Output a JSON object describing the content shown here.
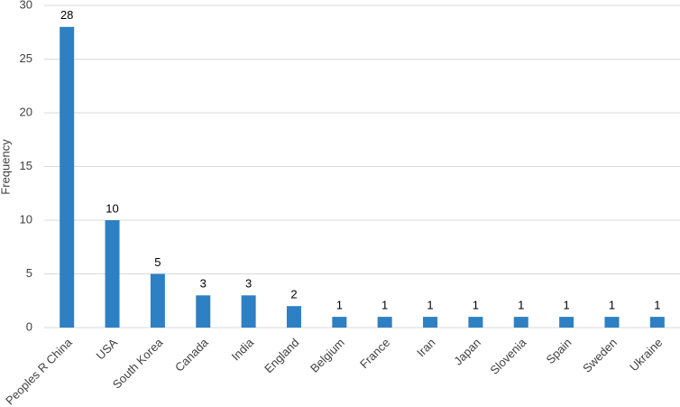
{
  "chart_data": {
    "type": "bar",
    "y_label": "Frequency",
    "categories": [
      "Peoples R China",
      "USA",
      "South Korea",
      "Canada",
      "India",
      "England",
      "Belgium",
      "France",
      "Iran",
      "Japan",
      "Slovenia",
      "Spain",
      "Sweden",
      "Ukraine"
    ],
    "values": [
      28,
      10,
      5,
      3,
      3,
      2,
      1,
      1,
      1,
      1,
      1,
      1,
      1,
      1
    ],
    "color": "#2e80c4",
    "ylim": [
      0,
      30
    ],
    "yticks": [
      0,
      5,
      10,
      15,
      20,
      25,
      30
    ],
    "grid": true
  }
}
